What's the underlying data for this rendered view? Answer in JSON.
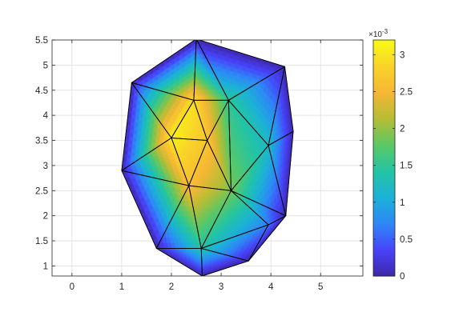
{
  "chart_data": {
    "type": "heatmap",
    "title": "",
    "xlabel": "",
    "ylabel": "",
    "xlim": [
      -0.4,
      5.85
    ],
    "ylim": [
      0.8,
      5.5
    ],
    "xticks": [
      "0",
      "1",
      "2",
      "3",
      "4",
      "5"
    ],
    "yticks": [
      "1",
      "1.5",
      "2",
      "2.5",
      "3",
      "3.5",
      "4",
      "4.5",
      "5",
      "5.5"
    ],
    "grid": true,
    "colorbar": {
      "range": [
        0,
        0.0032
      ],
      "ticks": [
        "0",
        "0.5",
        "1",
        "1.5",
        "2",
        "2.5",
        "3"
      ],
      "exponent_label": "×10",
      "exponent": "-3",
      "colormap": [
        "#3e26a8",
        "#4743f8",
        "#2e87f7",
        "#1cb1d7",
        "#23c4a4",
        "#5ac866",
        "#b5bd35",
        "#f5b735",
        "#f9d229",
        "#f9fb15"
      ]
    },
    "mesh": {
      "nodes": [
        [
          2.5,
          5.52
        ],
        [
          4.28,
          4.97
        ],
        [
          1.2,
          4.65
        ],
        [
          2.45,
          4.3
        ],
        [
          3.15,
          4.3
        ],
        [
          4.45,
          3.68
        ],
        [
          2.0,
          3.55
        ],
        [
          2.72,
          3.5
        ],
        [
          3.95,
          3.4
        ],
        [
          1.0,
          2.9
        ],
        [
          2.35,
          2.6
        ],
        [
          3.2,
          2.5
        ],
        [
          4.3,
          2.0
        ],
        [
          1.7,
          1.35
        ],
        [
          2.6,
          1.35
        ],
        [
          3.55,
          1.1
        ],
        [
          2.62,
          0.8
        ],
        [
          3.95,
          1.82
        ]
      ],
      "triangles": [
        [
          2,
          0,
          3
        ],
        [
          0,
          4,
          3
        ],
        [
          0,
          1,
          4
        ],
        [
          1,
          8,
          4
        ],
        [
          1,
          5,
          8
        ],
        [
          2,
          3,
          6
        ],
        [
          3,
          7,
          6
        ],
        [
          3,
          4,
          7
        ],
        [
          2,
          6,
          9
        ],
        [
          4,
          11,
          7
        ],
        [
          4,
          8,
          11
        ],
        [
          6,
          10,
          9
        ],
        [
          6,
          7,
          10
        ],
        [
          7,
          11,
          10
        ],
        [
          8,
          12,
          11
        ],
        [
          5,
          12,
          8
        ],
        [
          9,
          10,
          13
        ],
        [
          10,
          14,
          13
        ],
        [
          10,
          11,
          14
        ],
        [
          11,
          17,
          14
        ],
        [
          11,
          12,
          17
        ],
        [
          14,
          17,
          15
        ],
        [
          12,
          15,
          17
        ],
        [
          13,
          14,
          16
        ],
        [
          14,
          15,
          16
        ]
      ],
      "nodal_values": [
        2e-05,
        2e-05,
        3e-05,
        0.00295,
        0.0015,
        3e-05,
        0.0031,
        0.0027,
        0.0012,
        3e-05,
        0.0026,
        0.0019,
        3e-05,
        3e-05,
        0.0014,
        3e-05,
        2e-05,
        0.00065
      ]
    }
  }
}
